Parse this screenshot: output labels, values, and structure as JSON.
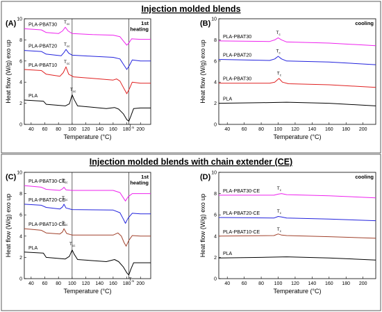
{
  "figure": {
    "top_title": "Injection molded blends",
    "bottom_title": "Injection molded blends with chain extender (CE)"
  },
  "chart_data": [
    {
      "panel": "(A)",
      "type": "line",
      "mode_label": [
        "1st",
        "heating"
      ],
      "xlabel": "Temperature (°C)",
      "ylabel": "Heat flow (W/g) exo up",
      "xlim": [
        30,
        215
      ],
      "ylim": [
        0,
        10
      ],
      "xticks": [
        40,
        60,
        80,
        100,
        120,
        140,
        160,
        180,
        200
      ],
      "yticks": [
        0,
        2,
        4,
        6,
        8,
        10
      ],
      "vlines": [
        100,
        183
      ],
      "series": [
        {
          "name": "PLA-PBAT30",
          "color": "#ee22ee",
          "points": [
            [
              30,
              9.05
            ],
            [
              55,
              8.95
            ],
            [
              62,
              8.7
            ],
            [
              80,
              8.6
            ],
            [
              86,
              8.85
            ],
            [
              90,
              9.2
            ],
            [
              94,
              8.85
            ],
            [
              100,
              8.6
            ],
            [
              130,
              8.5
            ],
            [
              160,
              8.45
            ],
            [
              170,
              8.3
            ],
            [
              175,
              7.9
            ],
            [
              180,
              7.5
            ],
            [
              183,
              7.7
            ],
            [
              187,
              8.1
            ],
            [
              200,
              8.05
            ],
            [
              215,
              8.05
            ]
          ]
        },
        {
          "name": "PLA-PBAT20",
          "color": "#2222dd",
          "points": [
            [
              30,
              7.0
            ],
            [
              55,
              6.9
            ],
            [
              62,
              6.65
            ],
            [
              84,
              6.5
            ],
            [
              88,
              6.8
            ],
            [
              91,
              7.1
            ],
            [
              95,
              6.75
            ],
            [
              100,
              6.55
            ],
            [
              130,
              6.45
            ],
            [
              160,
              6.35
            ],
            [
              170,
              6.2
            ],
            [
              175,
              5.7
            ],
            [
              180,
              5.2
            ],
            [
              184,
              5.6
            ],
            [
              188,
              6.1
            ],
            [
              200,
              6.0
            ],
            [
              215,
              6.0
            ]
          ]
        },
        {
          "name": "PLA-PBAT10",
          "color": "#e02020",
          "points": [
            [
              30,
              5.2
            ],
            [
              55,
              5.1
            ],
            [
              62,
              4.75
            ],
            [
              82,
              4.55
            ],
            [
              87,
              4.9
            ],
            [
              91,
              5.45
            ],
            [
              95,
              4.75
            ],
            [
              102,
              4.5
            ],
            [
              160,
              4.2
            ],
            [
              165,
              4.3
            ],
            [
              170,
              4.1
            ],
            [
              175,
              3.5
            ],
            [
              180,
              2.9
            ],
            [
              184,
              3.4
            ],
            [
              188,
              4.0
            ],
            [
              200,
              3.9
            ],
            [
              215,
              3.9
            ]
          ]
        },
        {
          "name": "PLA",
          "color": "#000000",
          "points": [
            [
              30,
              2.3
            ],
            [
              58,
              2.2
            ],
            [
              62,
              1.9
            ],
            [
              90,
              1.75
            ],
            [
              96,
              1.95
            ],
            [
              100,
              2.8
            ],
            [
              103,
              2.35
            ],
            [
              108,
              1.75
            ],
            [
              150,
              1.5
            ],
            [
              162,
              1.6
            ],
            [
              168,
              1.45
            ],
            [
              175,
              1.0
            ],
            [
              180,
              0.45
            ],
            [
              183,
              0.3
            ],
            [
              186,
              0.8
            ],
            [
              190,
              1.5
            ],
            [
              200,
              1.55
            ],
            [
              215,
              1.55
            ]
          ]
        }
      ],
      "annotations": [
        {
          "text": "T",
          "sub": "cc",
          "x": 91,
          "y": 9.55
        },
        {
          "text": "T",
          "sub": "cc",
          "x": 91,
          "y": 7.45
        },
        {
          "text": "T",
          "sub": "cc",
          "x": 91,
          "y": 5.8
        },
        {
          "text": "T",
          "sub": "cc",
          "x": 100,
          "y": 3.15
        },
        {
          "text": "T",
          "sub": "m",
          "x": 186,
          "y": -0.25
        }
      ]
    },
    {
      "panel": "(B)",
      "type": "line",
      "mode_label": [
        "cooling"
      ],
      "xlabel": "Temperature (°C)",
      "ylabel": "Heat flow (W/g) exo up",
      "xlim": [
        30,
        215
      ],
      "ylim": [
        0,
        10
      ],
      "xticks": [
        40,
        60,
        80,
        100,
        120,
        140,
        160,
        180,
        200
      ],
      "yticks": [
        0,
        2,
        4,
        6,
        8,
        10
      ],
      "vlines": [],
      "series": [
        {
          "name": "PLA-PBAT30",
          "color": "#ee22ee",
          "points": [
            [
              30,
              7.9
            ],
            [
              90,
              7.85
            ],
            [
              96,
              8.0
            ],
            [
              100,
              8.2
            ],
            [
              104,
              8.0
            ],
            [
              110,
              7.8
            ],
            [
              160,
              7.7
            ],
            [
              215,
              7.45
            ]
          ]
        },
        {
          "name": "PLA-PBAT20",
          "color": "#2222dd",
          "points": [
            [
              30,
              6.15
            ],
            [
              90,
              6.05
            ],
            [
              96,
              6.2
            ],
            [
              100,
              6.45
            ],
            [
              104,
              6.2
            ],
            [
              110,
              6.0
            ],
            [
              160,
              5.9
            ],
            [
              215,
              5.65
            ]
          ]
        },
        {
          "name": "PLA-PBAT30",
          "color": "#e02020",
          "points": [
            [
              30,
              3.9
            ],
            [
              90,
              3.9
            ],
            [
              96,
              4.0
            ],
            [
              101,
              4.35
            ],
            [
              105,
              4.0
            ],
            [
              112,
              3.85
            ],
            [
              160,
              3.75
            ],
            [
              215,
              3.5
            ]
          ]
        },
        {
          "name": "PLA",
          "color": "#000000",
          "points": [
            [
              30,
              2.0
            ],
            [
              80,
              2.05
            ],
            [
              110,
              2.1
            ],
            [
              160,
              2.0
            ],
            [
              215,
              1.75
            ]
          ]
        }
      ],
      "annotations": [
        {
          "text": "T",
          "sub": "c",
          "x": 100,
          "y": 8.55
        },
        {
          "text": "T",
          "sub": "c",
          "x": 100,
          "y": 6.8
        },
        {
          "text": "T",
          "sub": "c",
          "x": 101,
          "y": 4.7
        }
      ]
    },
    {
      "panel": "(C)",
      "type": "line",
      "mode_label": [
        "1st",
        "heating"
      ],
      "xlabel": "Temperature (°C)",
      "ylabel": "Heat flow (W/g) exo up",
      "xlim": [
        30,
        215
      ],
      "ylim": [
        0,
        10
      ],
      "xticks": [
        40,
        60,
        80,
        100,
        120,
        140,
        160,
        180,
        200
      ],
      "yticks": [
        0,
        2,
        4,
        6,
        8,
        10
      ],
      "vlines": [
        100,
        183
      ],
      "series": [
        {
          "name": "PLA-PBAT30-CE",
          "color": "#ee22ee",
          "points": [
            [
              30,
              8.75
            ],
            [
              55,
              8.6
            ],
            [
              62,
              8.4
            ],
            [
              82,
              8.3
            ],
            [
              86,
              8.45
            ],
            [
              88,
              8.6
            ],
            [
              91,
              8.35
            ],
            [
              100,
              8.3
            ],
            [
              160,
              8.3
            ],
            [
              170,
              8.1
            ],
            [
              175,
              7.6
            ],
            [
              178,
              7.3
            ],
            [
              182,
              7.7
            ],
            [
              188,
              8.0
            ],
            [
              200,
              8.0
            ],
            [
              215,
              8.0
            ]
          ]
        },
        {
          "name": "PLA-PBAT20-CE",
          "color": "#2222dd",
          "points": [
            [
              30,
              7.0
            ],
            [
              55,
              6.9
            ],
            [
              62,
              6.7
            ],
            [
              82,
              6.55
            ],
            [
              86,
              6.75
            ],
            [
              88,
              7.0
            ],
            [
              91,
              6.65
            ],
            [
              100,
              6.5
            ],
            [
              160,
              6.45
            ],
            [
              170,
              6.2
            ],
            [
              175,
              5.6
            ],
            [
              178,
              5.2
            ],
            [
              182,
              5.7
            ],
            [
              188,
              6.15
            ],
            [
              200,
              6.1
            ],
            [
              215,
              6.1
            ]
          ]
        },
        {
          "name": "PLA-PBAT10-CE",
          "color": "#a0402a",
          "points": [
            [
              30,
              4.7
            ],
            [
              55,
              4.55
            ],
            [
              62,
              4.3
            ],
            [
              82,
              4.2
            ],
            [
              86,
              4.4
            ],
            [
              88,
              4.7
            ],
            [
              92,
              4.25
            ],
            [
              100,
              4.1
            ],
            [
              160,
              4.1
            ],
            [
              167,
              4.3
            ],
            [
              172,
              4.0
            ],
            [
              176,
              3.4
            ],
            [
              179,
              3.05
            ],
            [
              183,
              3.6
            ],
            [
              188,
              4.05
            ],
            [
              200,
              4.0
            ],
            [
              215,
              4.0
            ]
          ]
        },
        {
          "name": "PLA",
          "color": "#000000",
          "points": [
            [
              30,
              2.5
            ],
            [
              58,
              2.4
            ],
            [
              62,
              2.0
            ],
            [
              90,
              1.85
            ],
            [
              96,
              2.1
            ],
            [
              100,
              2.7
            ],
            [
              103,
              2.3
            ],
            [
              108,
              1.8
            ],
            [
              150,
              1.6
            ],
            [
              162,
              1.8
            ],
            [
              168,
              1.6
            ],
            [
              175,
              1.1
            ],
            [
              180,
              0.55
            ],
            [
              183,
              0.35
            ],
            [
              186,
              0.9
            ],
            [
              190,
              1.5
            ],
            [
              200,
              1.5
            ],
            [
              215,
              1.5
            ]
          ]
        }
      ],
      "annotations": [
        {
          "text": "T",
          "sub": "cc",
          "x": 88,
          "y": 9.1
        },
        {
          "text": "T",
          "sub": "cc",
          "x": 88,
          "y": 7.45
        },
        {
          "text": "T",
          "sub": "cc",
          "x": 88,
          "y": 5.1
        },
        {
          "text": "T",
          "sub": "cc",
          "x": 99,
          "y": 3.15
        },
        {
          "text": "T",
          "sub": "m",
          "x": 186,
          "y": -0.2
        }
      ]
    },
    {
      "panel": "(D)",
      "type": "line",
      "mode_label": [
        "cooling"
      ],
      "xlabel": "Temperature (°C)",
      "ylabel": "Heat flow (W/g) exo up",
      "xlim": [
        30,
        215
      ],
      "ylim": [
        0,
        10
      ],
      "xticks": [
        40,
        60,
        80,
        100,
        120,
        140,
        160,
        180,
        200
      ],
      "yticks": [
        0,
        2,
        4,
        6,
        8,
        10
      ],
      "vlines": [],
      "series": [
        {
          "name": "PLA-PBAT30-CE",
          "color": "#ee22ee",
          "points": [
            [
              30,
              7.85
            ],
            [
              95,
              7.85
            ],
            [
              100,
              7.95
            ],
            [
              104,
              8.0
            ],
            [
              110,
              7.9
            ],
            [
              160,
              7.8
            ],
            [
              215,
              7.6
            ]
          ]
        },
        {
          "name": "PLA-PBAT20-CE",
          "color": "#2222dd",
          "points": [
            [
              30,
              5.75
            ],
            [
              95,
              5.7
            ],
            [
              100,
              5.85
            ],
            [
              104,
              5.8
            ],
            [
              110,
              5.7
            ],
            [
              160,
              5.6
            ],
            [
              215,
              5.45
            ]
          ]
        },
        {
          "name": "PLA-PBAT10-CE",
          "color": "#a0402a",
          "points": [
            [
              30,
              4.0
            ],
            [
              95,
              4.05
            ],
            [
              100,
              4.2
            ],
            [
              104,
              4.1
            ],
            [
              110,
              4.05
            ],
            [
              160,
              3.95
            ],
            [
              215,
              3.8
            ]
          ]
        },
        {
          "name": "PLA",
          "color": "#000000",
          "points": [
            [
              30,
              1.95
            ],
            [
              80,
              2.0
            ],
            [
              110,
              2.05
            ],
            [
              160,
              1.95
            ],
            [
              215,
              1.75
            ]
          ]
        }
      ],
      "annotations": [
        {
          "text": "T",
          "sub": "c",
          "x": 101,
          "y": 8.35
        },
        {
          "text": "T",
          "sub": "c",
          "x": 101,
          "y": 6.2
        },
        {
          "text": "T",
          "sub": "c",
          "x": 101,
          "y": 4.5
        }
      ]
    }
  ]
}
